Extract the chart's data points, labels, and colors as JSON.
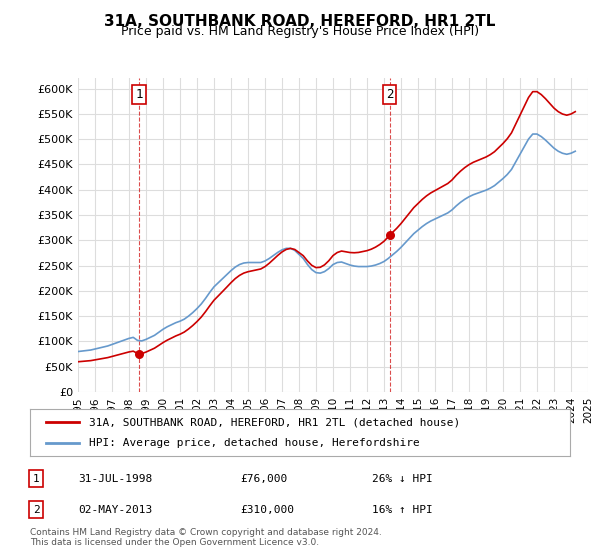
{
  "title": "31A, SOUTHBANK ROAD, HEREFORD, HR1 2TL",
  "subtitle": "Price paid vs. HM Land Registry's House Price Index (HPI)",
  "xlabel": "",
  "ylabel": "",
  "ylim": [
    0,
    620000
  ],
  "yticks": [
    0,
    50000,
    100000,
    150000,
    200000,
    250000,
    300000,
    350000,
    400000,
    450000,
    500000,
    550000,
    600000
  ],
  "ytick_labels": [
    "£0",
    "£50K",
    "£100K",
    "£150K",
    "£200K",
    "£250K",
    "£300K",
    "£350K",
    "£400K",
    "£450K",
    "£500K",
    "£550K",
    "£600K"
  ],
  "sale1_x": 1998.58,
  "sale1_y": 76000,
  "sale1_label": "1",
  "sale2_x": 2013.33,
  "sale2_y": 310000,
  "sale2_label": "2",
  "sale_color": "#cc0000",
  "hpi_color": "#6699cc",
  "vline_color": "#cc0000",
  "background_color": "#ffffff",
  "grid_color": "#dddddd",
  "legend_label_red": "31A, SOUTHBANK ROAD, HEREFORD, HR1 2TL (detached house)",
  "legend_label_blue": "HPI: Average price, detached house, Herefordshire",
  "annotation1_date": "31-JUL-1998",
  "annotation1_price": "£76,000",
  "annotation1_hpi": "26% ↓ HPI",
  "annotation2_date": "02-MAY-2013",
  "annotation2_price": "£310,000",
  "annotation2_hpi": "16% ↑ HPI",
  "footer": "Contains HM Land Registry data © Crown copyright and database right 2024.\nThis data is licensed under the Open Government Licence v3.0.",
  "hpi_years": [
    1995.0,
    1995.25,
    1995.5,
    1995.75,
    1996.0,
    1996.25,
    1996.5,
    1996.75,
    1997.0,
    1997.25,
    1997.5,
    1997.75,
    1998.0,
    1998.25,
    1998.5,
    1998.75,
    1999.0,
    1999.25,
    1999.5,
    1999.75,
    2000.0,
    2000.25,
    2000.5,
    2000.75,
    2001.0,
    2001.25,
    2001.5,
    2001.75,
    2002.0,
    2002.25,
    2002.5,
    2002.75,
    2003.0,
    2003.25,
    2003.5,
    2003.75,
    2004.0,
    2004.25,
    2004.5,
    2004.75,
    2005.0,
    2005.25,
    2005.5,
    2005.75,
    2006.0,
    2006.25,
    2006.5,
    2006.75,
    2007.0,
    2007.25,
    2007.5,
    2007.75,
    2008.0,
    2008.25,
    2008.5,
    2008.75,
    2009.0,
    2009.25,
    2009.5,
    2009.75,
    2010.0,
    2010.25,
    2010.5,
    2010.75,
    2011.0,
    2011.25,
    2011.5,
    2011.75,
    2012.0,
    2012.25,
    2012.5,
    2012.75,
    2013.0,
    2013.25,
    2013.5,
    2013.75,
    2014.0,
    2014.25,
    2014.5,
    2014.75,
    2015.0,
    2015.25,
    2015.5,
    2015.75,
    2016.0,
    2016.25,
    2016.5,
    2016.75,
    2017.0,
    2017.25,
    2017.5,
    2017.75,
    2018.0,
    2018.25,
    2018.5,
    2018.75,
    2019.0,
    2019.25,
    2019.5,
    2019.75,
    2020.0,
    2020.25,
    2020.5,
    2020.75,
    2021.0,
    2021.25,
    2021.5,
    2021.75,
    2022.0,
    2022.25,
    2022.5,
    2022.75,
    2023.0,
    2023.25,
    2023.5,
    2023.75,
    2024.0,
    2024.25
  ],
  "hpi_values": [
    80000,
    81000,
    82000,
    83000,
    85000,
    87000,
    89000,
    91000,
    94000,
    97000,
    100000,
    103000,
    106000,
    108000,
    102000,
    101000,
    104000,
    108000,
    112000,
    118000,
    124000,
    129000,
    133000,
    137000,
    140000,
    144000,
    150000,
    157000,
    165000,
    174000,
    185000,
    197000,
    208000,
    216000,
    224000,
    232000,
    240000,
    247000,
    252000,
    255000,
    256000,
    256000,
    256000,
    256000,
    259000,
    264000,
    270000,
    276000,
    281000,
    284000,
    284000,
    280000,
    272000,
    264000,
    252000,
    242000,
    236000,
    235000,
    238000,
    244000,
    252000,
    256000,
    257000,
    254000,
    251000,
    249000,
    248000,
    248000,
    248000,
    249000,
    251000,
    254000,
    258000,
    264000,
    271000,
    278000,
    286000,
    295000,
    304000,
    313000,
    320000,
    327000,
    333000,
    338000,
    342000,
    346000,
    350000,
    354000,
    360000,
    368000,
    375000,
    381000,
    386000,
    390000,
    393000,
    396000,
    399000,
    403000,
    408000,
    415000,
    422000,
    430000,
    440000,
    455000,
    470000,
    485000,
    500000,
    510000,
    510000,
    505000,
    498000,
    490000,
    482000,
    476000,
    472000,
    470000,
    472000,
    476000
  ],
  "sale_years": [
    1998.58,
    2013.33
  ],
  "sale_values": [
    76000,
    310000
  ],
  "xtick_years": [
    1995,
    1996,
    1997,
    1998,
    1999,
    2000,
    2001,
    2002,
    2003,
    2004,
    2005,
    2006,
    2007,
    2008,
    2009,
    2010,
    2011,
    2012,
    2013,
    2014,
    2015,
    2016,
    2017,
    2018,
    2019,
    2020,
    2021,
    2022,
    2023,
    2024,
    2025
  ]
}
